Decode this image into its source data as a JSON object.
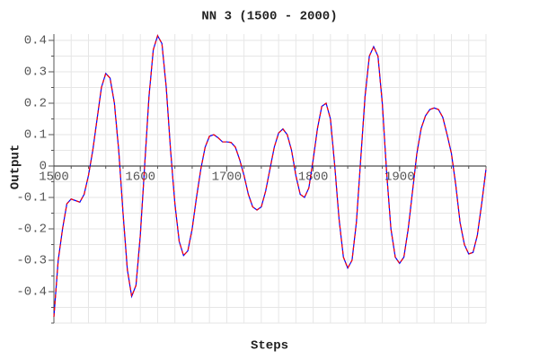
{
  "chart_data": {
    "type": "line",
    "title": "NN 3 (1500 - 2000)",
    "xlabel": "Steps",
    "ylabel": "Output",
    "x": [
      1500,
      1505,
      1510,
      1515,
      1520,
      1525,
      1530,
      1535,
      1540,
      1545,
      1550,
      1555,
      1560,
      1565,
      1570,
      1575,
      1580,
      1585,
      1590,
      1595,
      1600,
      1605,
      1610,
      1615,
      1620,
      1625,
      1630,
      1635,
      1640,
      1645,
      1650,
      1655,
      1660,
      1665,
      1670,
      1675,
      1680,
      1685,
      1690,
      1695,
      1700,
      1705,
      1710,
      1715,
      1720,
      1725,
      1730,
      1735,
      1740,
      1745,
      1750,
      1755,
      1760,
      1765,
      1770,
      1775,
      1780,
      1785,
      1790,
      1795,
      1800,
      1805,
      1810,
      1815,
      1820,
      1825,
      1830,
      1835,
      1840,
      1845,
      1850,
      1855,
      1860,
      1865,
      1870,
      1875,
      1880,
      1885,
      1890,
      1895,
      1900,
      1905,
      1910,
      1915,
      1920,
      1925,
      1930,
      1935,
      1940,
      1945,
      1950,
      1955,
      1960,
      1965,
      1970,
      1975,
      1980,
      1985,
      1990,
      1995,
      2000
    ],
    "series": [
      {
        "color": "#0000ff",
        "dash": false,
        "values": [
          -0.48,
          -0.3,
          -0.2,
          -0.12,
          -0.105,
          -0.11,
          -0.115,
          -0.09,
          -0.03,
          0.05,
          0.15,
          0.25,
          0.295,
          0.28,
          0.2,
          0.05,
          -0.15,
          -0.33,
          -0.415,
          -0.38,
          -0.22,
          0.0,
          0.22,
          0.37,
          0.415,
          0.39,
          0.25,
          0.05,
          -0.12,
          -0.24,
          -0.285,
          -0.27,
          -0.2,
          -0.1,
          -0.01,
          0.06,
          0.095,
          0.1,
          0.09,
          0.077,
          0.077,
          0.075,
          0.06,
          0.02,
          -0.03,
          -0.09,
          -0.13,
          -0.14,
          -0.13,
          -0.08,
          -0.01,
          0.06,
          0.105,
          0.118,
          0.1,
          0.05,
          -0.03,
          -0.09,
          -0.1,
          -0.07,
          0.02,
          0.12,
          0.19,
          0.2,
          0.15,
          0.0,
          -0.17,
          -0.29,
          -0.325,
          -0.3,
          -0.18,
          0.02,
          0.22,
          0.35,
          0.38,
          0.35,
          0.2,
          -0.02,
          -0.2,
          -0.29,
          -0.31,
          -0.29,
          -0.2,
          -0.08,
          0.04,
          0.12,
          0.16,
          0.18,
          0.185,
          0.18,
          0.155,
          0.1,
          0.04,
          -0.06,
          -0.18,
          -0.25,
          -0.28,
          -0.275,
          -0.22,
          -0.12,
          -0.01
        ]
      },
      {
        "color": "#ff0000",
        "dash": true,
        "values": [
          -0.48,
          -0.3,
          -0.2,
          -0.12,
          -0.105,
          -0.11,
          -0.115,
          -0.09,
          -0.03,
          0.05,
          0.15,
          0.25,
          0.295,
          0.28,
          0.2,
          0.05,
          -0.15,
          -0.33,
          -0.415,
          -0.38,
          -0.22,
          0.0,
          0.22,
          0.37,
          0.415,
          0.39,
          0.25,
          0.05,
          -0.12,
          -0.24,
          -0.285,
          -0.27,
          -0.2,
          -0.1,
          -0.01,
          0.06,
          0.095,
          0.1,
          0.09,
          0.077,
          0.077,
          0.075,
          0.06,
          0.02,
          -0.03,
          -0.09,
          -0.13,
          -0.14,
          -0.13,
          -0.08,
          -0.01,
          0.06,
          0.105,
          0.118,
          0.1,
          0.05,
          -0.03,
          -0.09,
          -0.1,
          -0.07,
          0.02,
          0.12,
          0.19,
          0.2,
          0.15,
          0.0,
          -0.17,
          -0.29,
          -0.325,
          -0.3,
          -0.18,
          0.02,
          0.22,
          0.35,
          0.38,
          0.35,
          0.2,
          -0.02,
          -0.2,
          -0.29,
          -0.31,
          -0.29,
          -0.2,
          -0.08,
          0.04,
          0.12,
          0.16,
          0.18,
          0.185,
          0.18,
          0.155,
          0.1,
          0.04,
          -0.06,
          -0.18,
          -0.25,
          -0.28,
          -0.275,
          -0.22,
          -0.12,
          -0.01
        ]
      }
    ],
    "xlim": [
      1500,
      2000
    ],
    "ylim": [
      -0.5,
      0.42
    ],
    "xticks": [
      1500,
      1600,
      1700,
      1800,
      1900
    ],
    "yticks": [
      -0.4,
      -0.3,
      -0.2,
      -0.1,
      0,
      0.1,
      0.2,
      0.3,
      0.4
    ],
    "x_minor_ticks": [
      1500,
      1520,
      1540,
      1560,
      1580,
      1600,
      1620,
      1640,
      1660,
      1680,
      1700,
      1720,
      1740,
      1760,
      1780,
      1800,
      1820,
      1840,
      1860,
      1880,
      1900,
      1920,
      1940,
      1960,
      1980,
      2000
    ],
    "y_minor_ticks": [
      -0.5,
      -0.45,
      -0.4,
      -0.35,
      -0.3,
      -0.25,
      -0.2,
      -0.15,
      -0.1,
      -0.05,
      0,
      0.05,
      0.1,
      0.15,
      0.2,
      0.25,
      0.3,
      0.35,
      0.4
    ],
    "grid": true
  }
}
